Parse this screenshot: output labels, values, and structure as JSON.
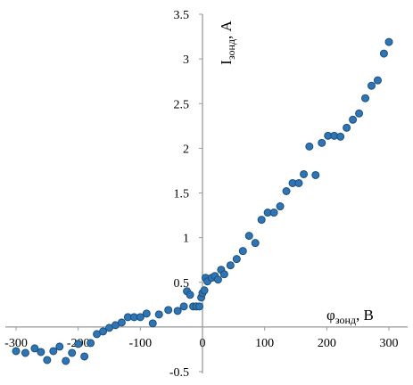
{
  "chart_data": {
    "type": "scatter",
    "title": "",
    "xlabel": {
      "main": "φ",
      "sub": "зонд",
      "unit": ", В"
    },
    "ylabel": {
      "main": "I",
      "sub": "зонд",
      "unit": ", А"
    },
    "xlim": [
      -300,
      300
    ],
    "ylim": [
      -0.5,
      3.5
    ],
    "xticks": [
      -300,
      -200,
      -100,
      0,
      100,
      200,
      300
    ],
    "xtick_labels": [
      "-300",
      "-200",
      "-100",
      "0",
      "100",
      "200",
      "300"
    ],
    "yticks": [
      -0.5,
      0,
      0.5,
      1,
      1.5,
      2,
      2.5,
      3,
      3.5
    ],
    "ytick_labels": [
      "-0.5",
      "",
      "0.5",
      "1",
      "1.5",
      "2",
      "2.5",
      "3",
      "3.5"
    ],
    "grid": false,
    "legend": "none",
    "marker_color": "#2e75b6",
    "marker_edge_color": "#1f4e79",
    "series": [
      {
        "points": [
          [
            -300,
            -0.27
          ],
          [
            -285,
            -0.29
          ],
          [
            -270,
            -0.24
          ],
          [
            -260,
            -0.28
          ],
          [
            -250,
            -0.37
          ],
          [
            -240,
            -0.27
          ],
          [
            -230,
            -0.22
          ],
          [
            -220,
            -0.38
          ],
          [
            -210,
            -0.29
          ],
          [
            -200,
            -0.19
          ],
          [
            -190,
            -0.33
          ],
          [
            -180,
            -0.18
          ],
          [
            -170,
            -0.08
          ],
          [
            -160,
            -0.05
          ],
          [
            -150,
            -0.01
          ],
          [
            -140,
            0.02
          ],
          [
            -130,
            0.05
          ],
          [
            -120,
            0.11
          ],
          [
            -110,
            0.11
          ],
          [
            -100,
            0.11
          ],
          [
            -90,
            0.15
          ],
          [
            -80,
            0.04
          ],
          [
            -70,
            0.14
          ],
          [
            -55,
            0.19
          ],
          [
            -40,
            0.18
          ],
          [
            -30,
            0.23
          ],
          [
            -25,
            0.4
          ],
          [
            -20,
            0.36
          ],
          [
            -15,
            0.23
          ],
          [
            -10,
            0.23
          ],
          [
            -5,
            0.23
          ],
          [
            -2,
            0.33
          ],
          [
            0,
            0.38
          ],
          [
            3,
            0.41
          ],
          [
            5,
            0.55
          ],
          [
            8,
            0.51
          ],
          [
            15,
            0.55
          ],
          [
            20,
            0.57
          ],
          [
            25,
            0.53
          ],
          [
            30,
            0.64
          ],
          [
            35,
            0.59
          ],
          [
            45,
            0.69
          ],
          [
            55,
            0.76
          ],
          [
            65,
            0.85
          ],
          [
            75,
            1.02
          ],
          [
            85,
            0.94
          ],
          [
            95,
            1.2
          ],
          [
            105,
            1.28
          ],
          [
            115,
            1.28
          ],
          [
            125,
            1.35
          ],
          [
            135,
            1.52
          ],
          [
            145,
            1.61
          ],
          [
            155,
            1.61
          ],
          [
            163,
            1.71
          ],
          [
            172,
            2.02
          ],
          [
            182,
            1.7
          ],
          [
            192,
            2.06
          ],
          [
            202,
            2.14
          ],
          [
            212,
            2.14
          ],
          [
            222,
            2.13
          ],
          [
            232,
            2.23
          ],
          [
            242,
            2.32
          ],
          [
            252,
            2.39
          ],
          [
            262,
            2.56
          ],
          [
            272,
            2.7
          ],
          [
            282,
            2.76
          ],
          [
            292,
            3.06
          ],
          [
            300,
            3.19
          ]
        ]
      }
    ]
  }
}
